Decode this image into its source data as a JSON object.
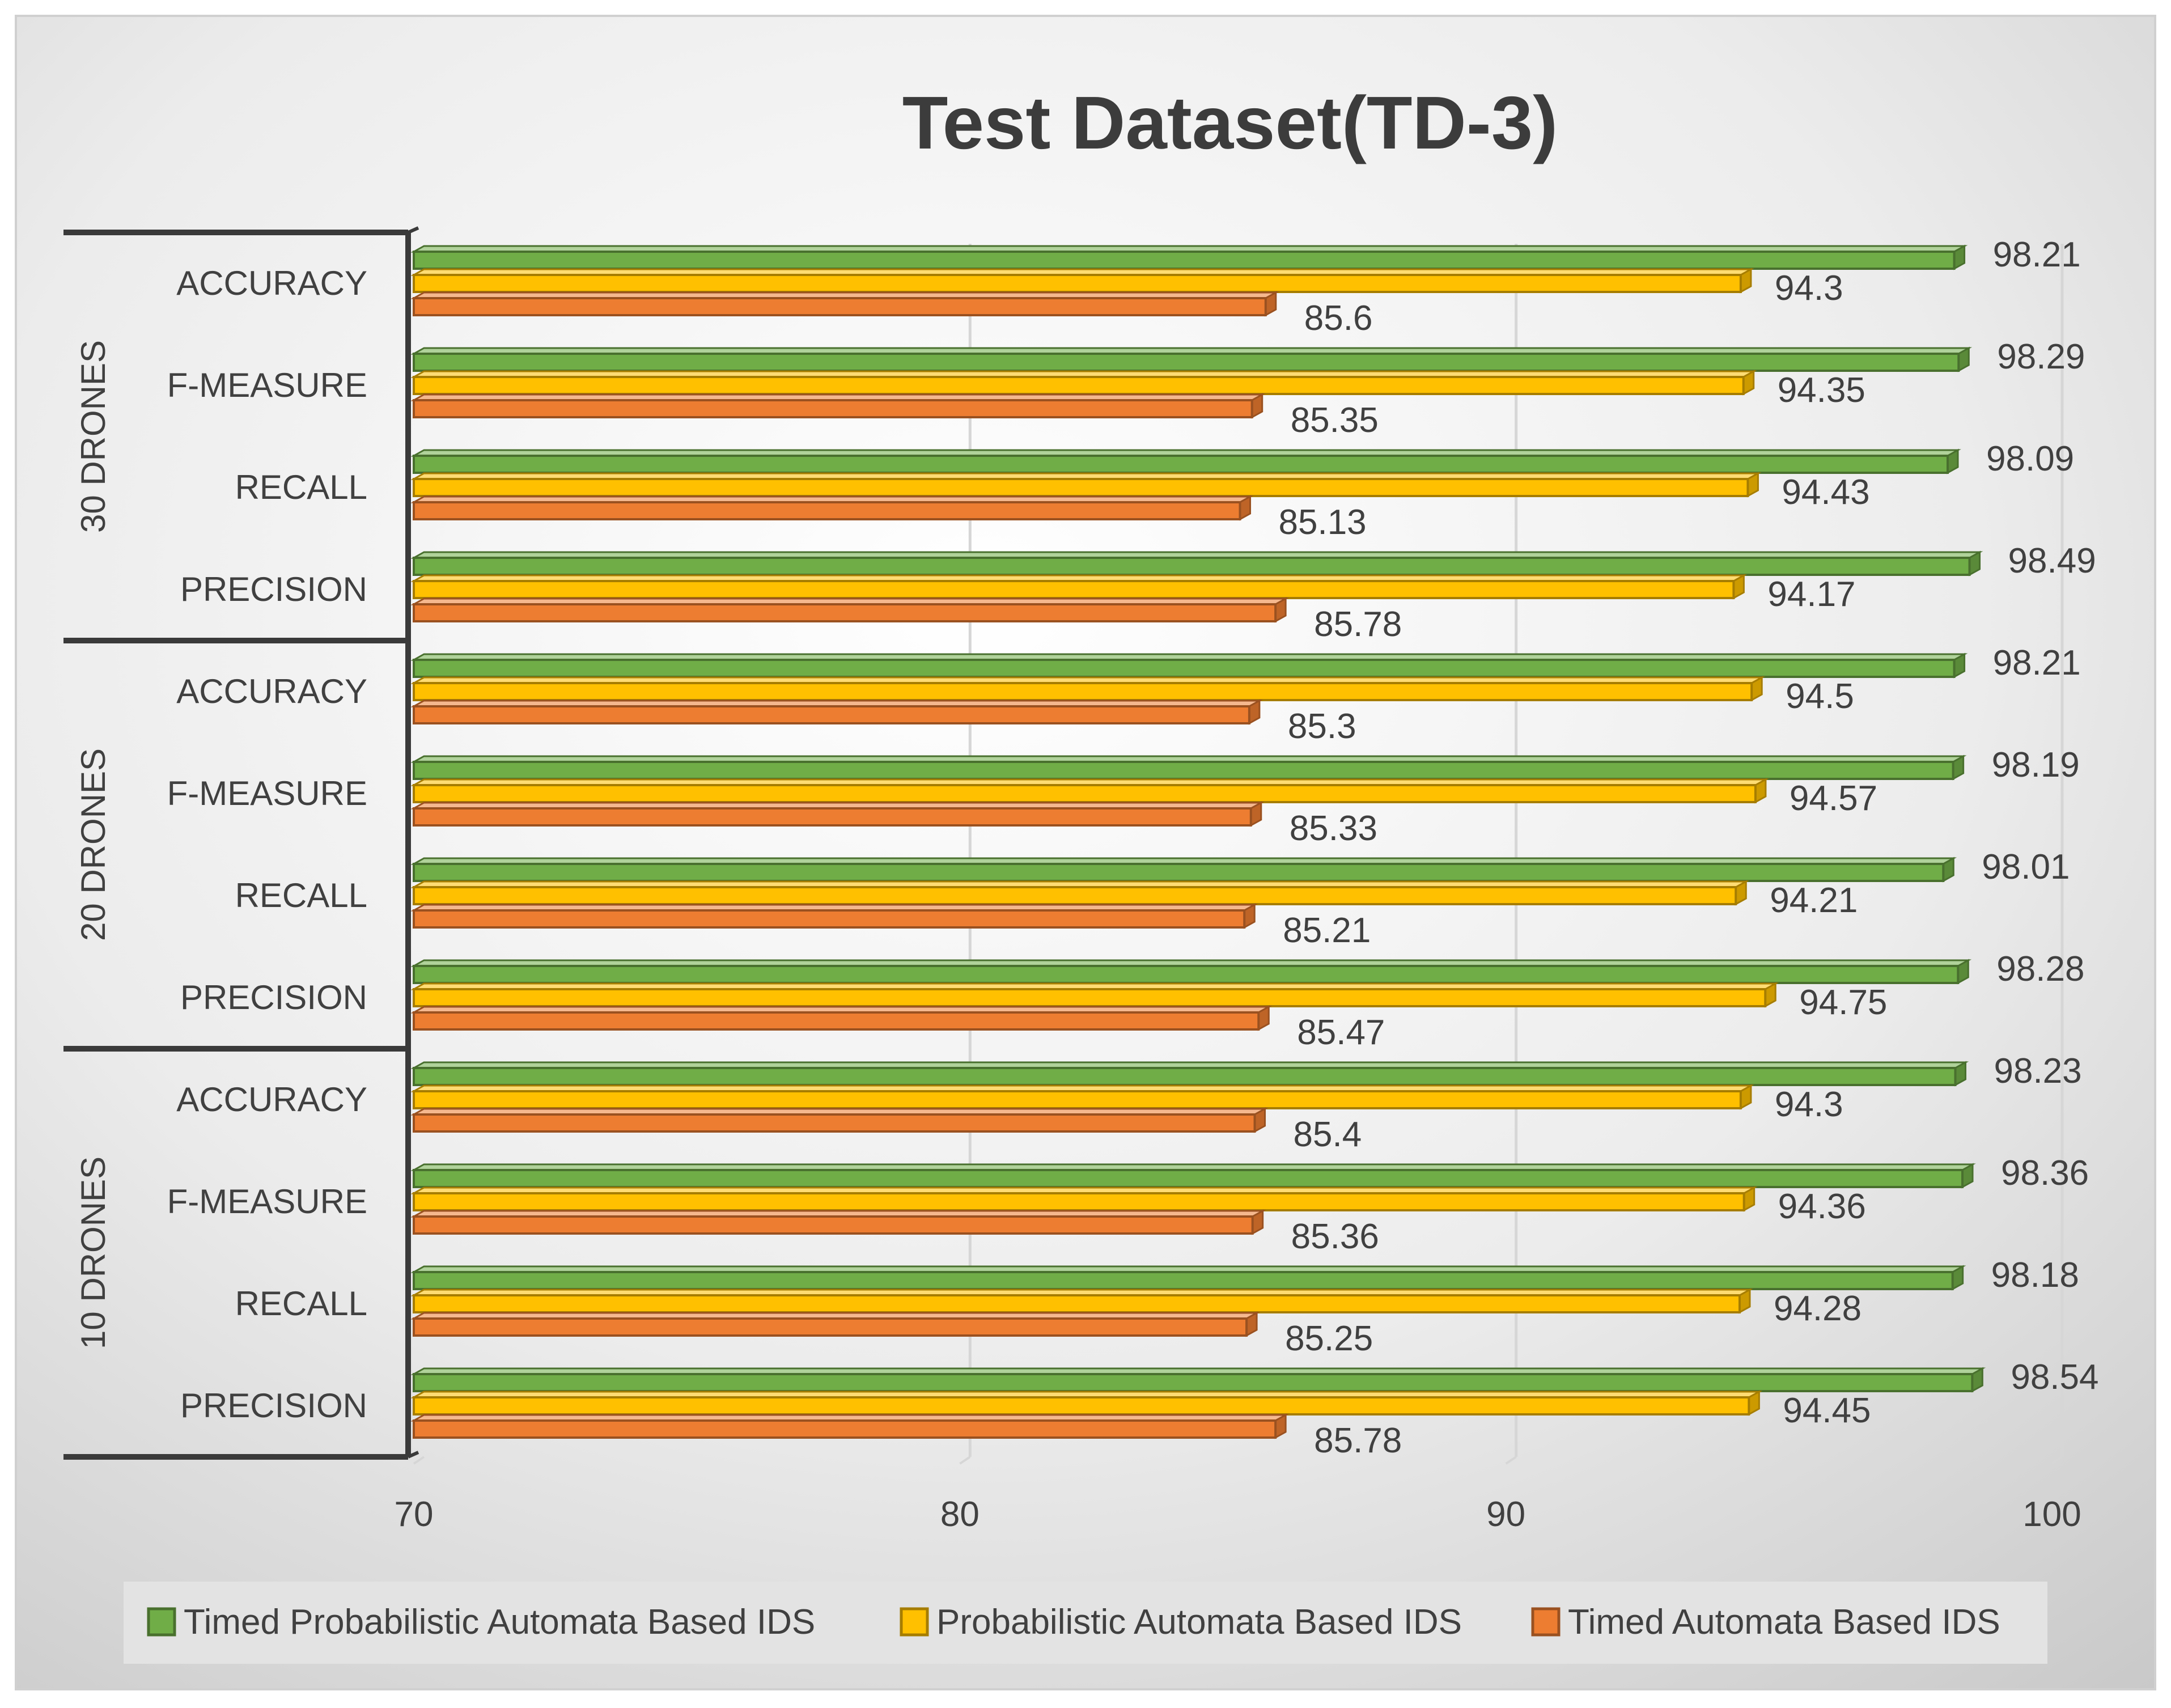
{
  "chart_data": {
    "type": "bar",
    "orientation": "horizontal",
    "title": "Test Dataset(TD-3)",
    "groups": [
      {
        "name": "30 DRONES",
        "categories": [
          "ACCURACY",
          "F-MEASURE",
          "RECALL",
          "PRECISION"
        ]
      },
      {
        "name": "20 DRONES",
        "categories": [
          "ACCURACY",
          "F-MEASURE",
          "RECALL",
          "PRECISION"
        ]
      },
      {
        "name": "10 DRONES",
        "categories": [
          "ACCURACY",
          "F-MEASURE",
          "RECALL",
          "PRECISION"
        ]
      }
    ],
    "series": [
      {
        "name": "Timed Probabilistic Automata Based IDS",
        "color": "#70AD47",
        "values": [
          98.21,
          98.29,
          98.09,
          98.49,
          98.21,
          98.19,
          98.01,
          98.28,
          98.23,
          98.36,
          98.18,
          98.54
        ],
        "labels": [
          "98.21",
          "98.29",
          "98.09",
          "98.49",
          "98.21",
          "98.19",
          "98.01",
          "98.28",
          "98.23",
          "98.36",
          "98.18",
          "98.54"
        ]
      },
      {
        "name": "Probabilistic Automata Based IDS",
        "color": "#FFC000",
        "values": [
          94.3,
          94.35,
          94.43,
          94.17,
          94.5,
          94.57,
          94.21,
          94.75,
          94.3,
          94.36,
          94.28,
          94.45
        ],
        "labels": [
          "94.3",
          "94.35",
          "94.43",
          "94.17",
          "94.5",
          "94.57",
          "94.21",
          "94.75",
          "94.3",
          "94.36",
          "94.28",
          "94.45"
        ]
      },
      {
        "name": "Timed Automata Based IDS",
        "color": "#ED7D31",
        "values": [
          85.6,
          85.35,
          85.13,
          85.78,
          85.3,
          85.33,
          85.21,
          85.47,
          85.4,
          85.36,
          85.25,
          85.78
        ],
        "labels": [
          "85.6",
          "85.35",
          "85.13",
          "85.78",
          "85.3",
          "85.33",
          "85.21",
          "85.47",
          "85.4",
          "85.36",
          "85.25",
          "85.78"
        ]
      }
    ],
    "xlim": [
      70,
      100
    ],
    "xticks": [
      "70",
      "80",
      "90",
      "100"
    ],
    "grid": true,
    "legend_position": "bottom"
  }
}
